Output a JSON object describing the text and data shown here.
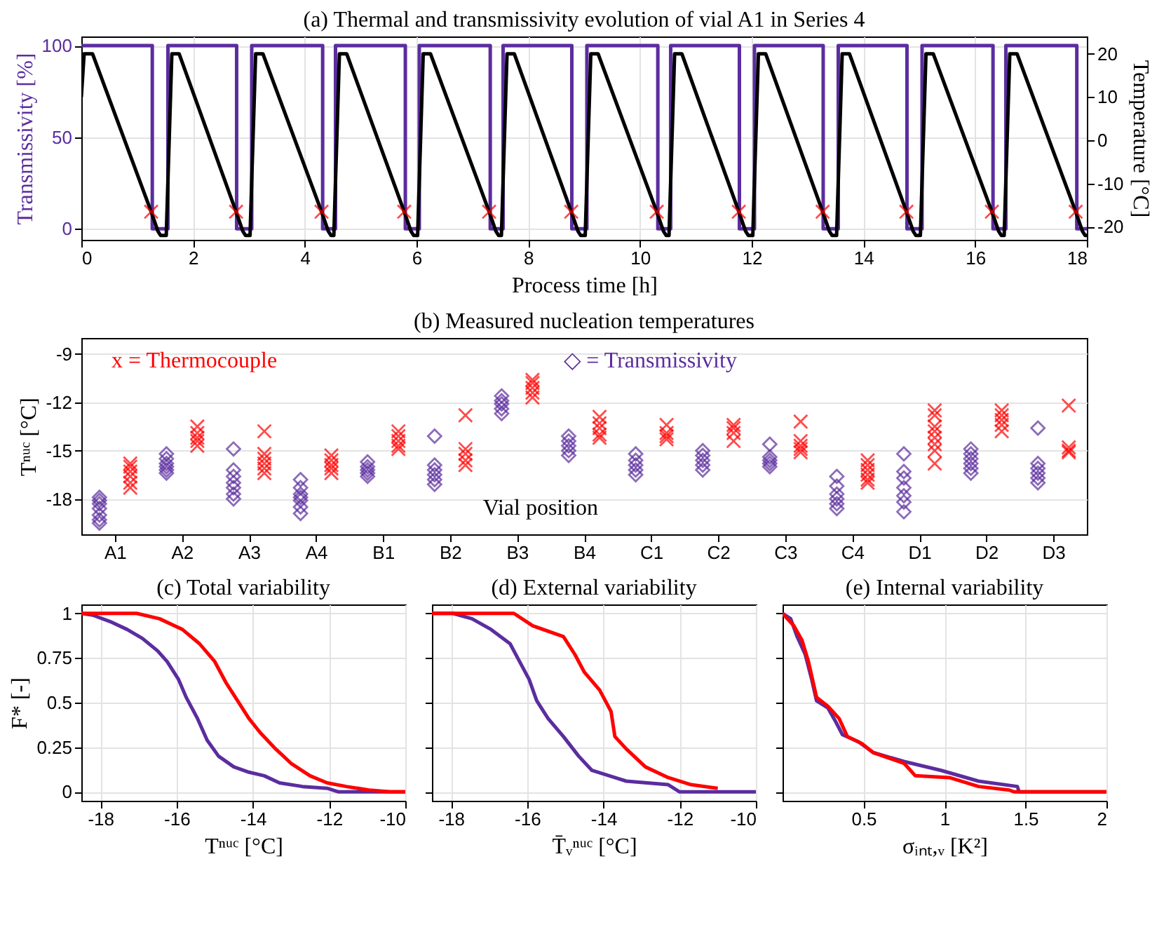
{
  "chart_data": [
    {
      "type": "line",
      "title": "(a) Thermal and transmissivity evolution of vial A1 in Series 4",
      "xlabel": "Process time [h]",
      "ylabel": "Transmissivity [%]",
      "y2label": "Temperature [°C]",
      "xlim": [
        0,
        18
      ],
      "xticks": [
        0,
        2,
        4,
        6,
        8,
        10,
        12,
        14,
        16,
        18
      ],
      "ylim": [
        -6,
        105
      ],
      "yticks": [
        0,
        50,
        100
      ],
      "y2lim": [
        -23,
        24
      ],
      "y2ticks": [
        -20,
        -10,
        0,
        10,
        20
      ],
      "grid": true,
      "series": [
        {
          "type": "step",
          "axis": "y",
          "color": "#5b2d9e",
          "x": [
            0,
            1.27,
            1.55,
            2.78,
            3.05,
            4.32,
            4.55,
            5.8,
            6.05,
            7.32,
            7.55,
            8.78,
            9.05,
            10.32,
            10.55,
            11.78,
            12.05,
            13.28,
            13.55,
            14.78,
            15.05,
            16.32,
            16.55,
            17.82,
            18
          ],
          "values": [
            100,
            0,
            100,
            0,
            100,
            0,
            100,
            0,
            100,
            0,
            100,
            0,
            100,
            0,
            100,
            0,
            100,
            0,
            100,
            0,
            100,
            0,
            100,
            0,
            0
          ]
        },
        {
          "type": "line",
          "axis": "y2",
          "color": "#000000",
          "x": [
            0,
            0.05,
            0.2,
            1.25,
            1.37,
            1.42,
            1.52,
            1.62,
            1.75,
            2.77,
            2.89,
            2.94,
            3.02,
            3.12,
            3.25,
            4.3,
            4.42,
            4.47,
            4.52,
            4.62,
            4.75,
            5.78,
            5.9,
            5.95,
            6.02,
            6.12,
            6.25,
            7.3,
            7.42,
            7.47,
            7.52,
            7.62,
            7.75,
            8.77,
            8.89,
            8.94,
            9.02,
            9.12,
            9.25,
            10.3,
            10.42,
            10.47,
            10.52,
            10.62,
            10.75,
            11.77,
            11.89,
            11.94,
            12.02,
            12.12,
            12.25,
            13.27,
            13.39,
            13.44,
            13.52,
            13.62,
            13.75,
            14.77,
            14.89,
            14.94,
            15.02,
            15.12,
            15.25,
            16.3,
            16.42,
            16.47,
            16.52,
            16.62,
            16.75,
            17.8,
            17.92,
            17.97,
            18
          ],
          "values": [
            10,
            20,
            20,
            -16.5,
            -21,
            -22,
            -22,
            20,
            20,
            -16.5,
            -21,
            -22,
            -22,
            20,
            20,
            -16.5,
            -21,
            -22,
            -22,
            20,
            20,
            -16.5,
            -21,
            -22,
            -22,
            20,
            20,
            -16.5,
            -21,
            -22,
            -22,
            20,
            20,
            -16.5,
            -21,
            -22,
            -22,
            20,
            20,
            -16.5,
            -21,
            -22,
            -22,
            20,
            20,
            -16.5,
            -21,
            -22,
            -22,
            20,
            20,
            -16.5,
            -21,
            -22,
            -22,
            20,
            20,
            -16.5,
            -21,
            -22,
            -22,
            20,
            20,
            -16.5,
            -21,
            -22,
            -22,
            20,
            20,
            -16.5,
            -21,
            -22,
            -22
          ]
        },
        {
          "type": "scatter",
          "axis": "y2",
          "marker": "cross",
          "color": "#ff0000",
          "x": [
            1.25,
            2.77,
            4.3,
            5.78,
            7.3,
            8.77,
            10.3,
            11.77,
            13.27,
            14.77,
            16.3,
            17.8
          ],
          "values": [
            -16.5,
            -16.5,
            -16.5,
            -16.5,
            -16.5,
            -16.5,
            -16.5,
            -16.5,
            -16.5,
            -16.5,
            -16.5,
            -16.5
          ]
        }
      ]
    },
    {
      "type": "scatter",
      "title": "(b) Measured nucleation temperatures",
      "xlabel": "Vial position",
      "ylabel": "Tⁿᵘᶜ [°C]",
      "categories": [
        "A1",
        "A2",
        "A3",
        "A4",
        "B1",
        "B2",
        "B3",
        "B4",
        "C1",
        "C2",
        "C3",
        "C4",
        "D1",
        "D2",
        "D3"
      ],
      "ylim": [
        -20.2,
        -8
      ],
      "yticks": [
        -9,
        -12,
        -15,
        -18
      ],
      "grid": "y",
      "legend": "top",
      "series": [
        {
          "name": "◇ = Transmissivity",
          "marker": "diamond",
          "color": "#5b2d9e",
          "x": [
            "A1",
            "A1",
            "A1",
            "A1",
            "A1",
            "A1",
            "A1",
            "A2",
            "A2",
            "A2",
            "A2",
            "A2",
            "A2",
            "A3",
            "A3",
            "A3",
            "A3",
            "A3",
            "A3",
            "A3",
            "A4",
            "A4",
            "A4",
            "A4",
            "A4",
            "A4",
            "A4",
            "B1",
            "B1",
            "B1",
            "B1",
            "B1",
            "B2",
            "B2",
            "B2",
            "B2",
            "B2",
            "B2",
            "B3",
            "B3",
            "B3",
            "B3",
            "B3",
            "B4",
            "B4",
            "B4",
            "B4",
            "B4",
            "C1",
            "C1",
            "C1",
            "C1",
            "C1",
            "C2",
            "C2",
            "C2",
            "C2",
            "C2",
            "C3",
            "C3",
            "C3",
            "C3",
            "C3",
            "C4",
            "C4",
            "C4",
            "C4",
            "C4",
            "C4",
            "D1",
            "D1",
            "D1",
            "D1",
            "D1",
            "D1",
            "D1",
            "D2",
            "D2",
            "D2",
            "D2",
            "D2",
            "D2",
            "D3",
            "D3",
            "D3",
            "D3",
            "D3",
            "D3"
          ],
          "values": [
            -17.9,
            -18.1,
            -18.3,
            -18.6,
            -19.0,
            -19.3,
            -19.5,
            -15.2,
            -15.5,
            -15.8,
            -16.0,
            -16.2,
            -16.4,
            -14.9,
            -16.2,
            -16.6,
            -17.0,
            -17.3,
            -17.7,
            -18.0,
            -16.8,
            -17.3,
            -17.7,
            -17.9,
            -18.1,
            -18.5,
            -18.9,
            -15.7,
            -16.0,
            -16.2,
            -16.4,
            -16.6,
            -14.1,
            -15.9,
            -16.2,
            -16.5,
            -16.8,
            -17.1,
            -11.6,
            -11.9,
            -12.1,
            -12.4,
            -12.7,
            -14.1,
            -14.4,
            -14.7,
            -15.0,
            -15.3,
            -15.2,
            -15.6,
            -15.9,
            -16.2,
            -16.5,
            -15.0,
            -15.3,
            -15.6,
            -15.9,
            -16.2,
            -14.6,
            -15.4,
            -15.6,
            -15.8,
            -16.0,
            -16.6,
            -17.2,
            -17.7,
            -18.0,
            -18.3,
            -18.6,
            -15.2,
            -16.3,
            -16.7,
            -17.3,
            -17.8,
            -18.2,
            -18.8,
            -14.9,
            -15.2,
            -15.5,
            -15.8,
            -16.1,
            -16.4,
            -13.6,
            -15.8,
            -16.1,
            -16.4,
            -16.7,
            -17.0
          ]
        },
        {
          "name": "x = Thermocouple",
          "marker": "cross",
          "color": "#ff0000",
          "x": [
            "A1",
            "A1",
            "A1",
            "A1",
            "A1",
            "A1",
            "A2",
            "A2",
            "A2",
            "A2",
            "A2",
            "A3",
            "A3",
            "A3",
            "A3",
            "A3",
            "A3",
            "A4",
            "A4",
            "A4",
            "A4",
            "A4",
            "B1",
            "B1",
            "B1",
            "B1",
            "B1",
            "B2",
            "B2",
            "B2",
            "B2",
            "B2",
            "B3",
            "B3",
            "B3",
            "B3",
            "B3",
            "B4",
            "B4",
            "B4",
            "B4",
            "B4",
            "C1",
            "C1",
            "C1",
            "C1",
            "C2",
            "C2",
            "C2",
            "C2",
            "C3",
            "C3",
            "C3",
            "C3",
            "C3",
            "C4",
            "C4",
            "C4",
            "C4",
            "C4",
            "C4",
            "D1",
            "D1",
            "D1",
            "D1",
            "D1",
            "D1",
            "D1",
            "D1",
            "D2",
            "D2",
            "D2",
            "D2",
            "D2",
            "D3",
            "D3",
            "D3",
            "D3"
          ],
          "values": [
            -15.8,
            -16.0,
            -16.3,
            -16.6,
            -17.0,
            -17.3,
            -13.5,
            -13.9,
            -14.2,
            -14.4,
            -14.7,
            -13.8,
            -15.2,
            -15.5,
            -15.8,
            -16.1,
            -16.4,
            -15.3,
            -15.6,
            -15.9,
            -16.1,
            -16.4,
            -13.8,
            -14.1,
            -14.4,
            -14.7,
            -14.9,
            -12.8,
            -14.9,
            -15.2,
            -15.6,
            -15.9,
            -10.6,
            -10.8,
            -11.1,
            -11.4,
            -11.7,
            -12.9,
            -13.3,
            -13.6,
            -14.0,
            -14.2,
            -13.4,
            -13.9,
            -14.1,
            -14.3,
            -13.4,
            -13.6,
            -13.9,
            -14.4,
            -13.2,
            -14.4,
            -14.7,
            -14.9,
            -15.1,
            -15.6,
            -15.9,
            -16.2,
            -16.5,
            -16.8,
            -17.0,
            -12.5,
            -12.8,
            -13.5,
            -13.8,
            -14.2,
            -14.6,
            -15.0,
            -15.8,
            -12.5,
            -12.8,
            -13.1,
            -13.4,
            -13.8,
            -12.2,
            -14.8,
            -15.0,
            -15.1
          ]
        }
      ]
    },
    {
      "type": "line",
      "title": "(c) Total variability",
      "xlabel": "Tⁿᵘᶜ [°C]",
      "ylabel": "F* [-]",
      "xlim": [
        -18.5,
        -10
      ],
      "xticks": [
        -18,
        -16,
        -14,
        -12,
        -10
      ],
      "ylim": [
        -0.05,
        1.05
      ],
      "yticks": [
        0,
        0.25,
        0.5,
        0.75,
        1
      ],
      "grid": true,
      "series": [
        {
          "color": "#5b2d9e",
          "x": [
            -18.5,
            -18.2,
            -17.7,
            -17.3,
            -16.9,
            -16.5,
            -16.25,
            -15.95,
            -15.75,
            -15.45,
            -15.2,
            -14.9,
            -14.5,
            -14.1,
            -13.7,
            -13.3,
            -12.7,
            -12.05,
            -11.75,
            -10
          ],
          "values": [
            1,
            0.99,
            0.95,
            0.91,
            0.86,
            0.79,
            0.73,
            0.63,
            0.53,
            0.41,
            0.29,
            0.2,
            0.14,
            0.11,
            0.09,
            0.05,
            0.03,
            0.02,
            0,
            0
          ]
        },
        {
          "color": "#ff0000",
          "x": [
            -18.5,
            -17.05,
            -16.45,
            -15.85,
            -15.4,
            -15,
            -14.7,
            -14.4,
            -14.1,
            -13.8,
            -13.4,
            -13,
            -12.5,
            -12.05,
            -11.55,
            -10.95,
            -10.4,
            -10
          ],
          "values": [
            1,
            1,
            0.97,
            0.91,
            0.83,
            0.73,
            0.61,
            0.51,
            0.41,
            0.33,
            0.24,
            0.16,
            0.09,
            0.05,
            0.03,
            0.01,
            0,
            0
          ]
        }
      ]
    },
    {
      "type": "line",
      "title": "(d) External variability",
      "xlabel": "T̄ᵥⁿᵘᶜ [°C]",
      "xlim": [
        -18.5,
        -10
      ],
      "xticks": [
        -18,
        -16,
        -14,
        -12,
        -10
      ],
      "ylim": [
        -0.05,
        1.05
      ],
      "yticks": [
        0,
        0.25,
        0.5,
        0.75,
        1
      ],
      "grid": true,
      "tick_labels": "x",
      "series": [
        {
          "color": "#5b2d9e",
          "x": [
            -18.5,
            -17.95,
            -17.45,
            -16.95,
            -16.45,
            -16.25,
            -15.95,
            -15.75,
            -15.45,
            -15.05,
            -14.65,
            -14.3,
            -13.7,
            -13.4,
            -12.3,
            -12,
            -10
          ],
          "values": [
            1,
            1,
            0.97,
            0.91,
            0.83,
            0.75,
            0.63,
            0.51,
            0.41,
            0.31,
            0.2,
            0.12,
            0.08,
            0.06,
            0.04,
            0,
            0
          ]
        },
        {
          "color": "#ff0000",
          "x": [
            -18.5,
            -16.35,
            -15.85,
            -15.05,
            -14.75,
            -14.5,
            -14.1,
            -13.8,
            -13.7,
            -13.4,
            -12.9,
            -12.3,
            -11.7,
            -11
          ],
          "values": [
            1,
            1,
            0.93,
            0.87,
            0.77,
            0.67,
            0.57,
            0.45,
            0.31,
            0.24,
            0.14,
            0.08,
            0.04,
            0.02
          ]
        }
      ]
    },
    {
      "type": "line",
      "title": "(e) Internal variability",
      "xlabel": "σᵢₙₜ,ᵥ [K²]",
      "xlim": [
        0,
        2
      ],
      "xticks": [
        0.5,
        1,
        1.5,
        2
      ],
      "ylim": [
        -0.05,
        1.05
      ],
      "yticks": [
        0,
        0.25,
        0.5,
        0.75,
        1
      ],
      "grid": true,
      "tick_labels": "x",
      "series": [
        {
          "color": "#5b2d9e",
          "x": [
            0,
            0.05,
            0.09,
            0.14,
            0.18,
            0.21,
            0.28,
            0.33,
            0.37,
            0.47,
            0.56,
            0.75,
            0.98,
            1.21,
            1.45,
            1.46,
            2
          ],
          "values": [
            1,
            0.97,
            0.87,
            0.77,
            0.63,
            0.51,
            0.47,
            0.39,
            0.32,
            0.28,
            0.22,
            0.17,
            0.12,
            0.06,
            0.03,
            0,
            0
          ]
        },
        {
          "color": "#ff0000",
          "x": [
            0,
            0.07,
            0.12,
            0.16,
            0.21,
            0.28,
            0.35,
            0.4,
            0.49,
            0.56,
            0.75,
            0.82,
            1.03,
            1.21,
            1.4,
            1.43,
            2
          ],
          "values": [
            1,
            0.93,
            0.85,
            0.73,
            0.53,
            0.48,
            0.41,
            0.31,
            0.27,
            0.22,
            0.16,
            0.09,
            0.08,
            0.03,
            0.01,
            0,
            0
          ]
        }
      ]
    }
  ]
}
